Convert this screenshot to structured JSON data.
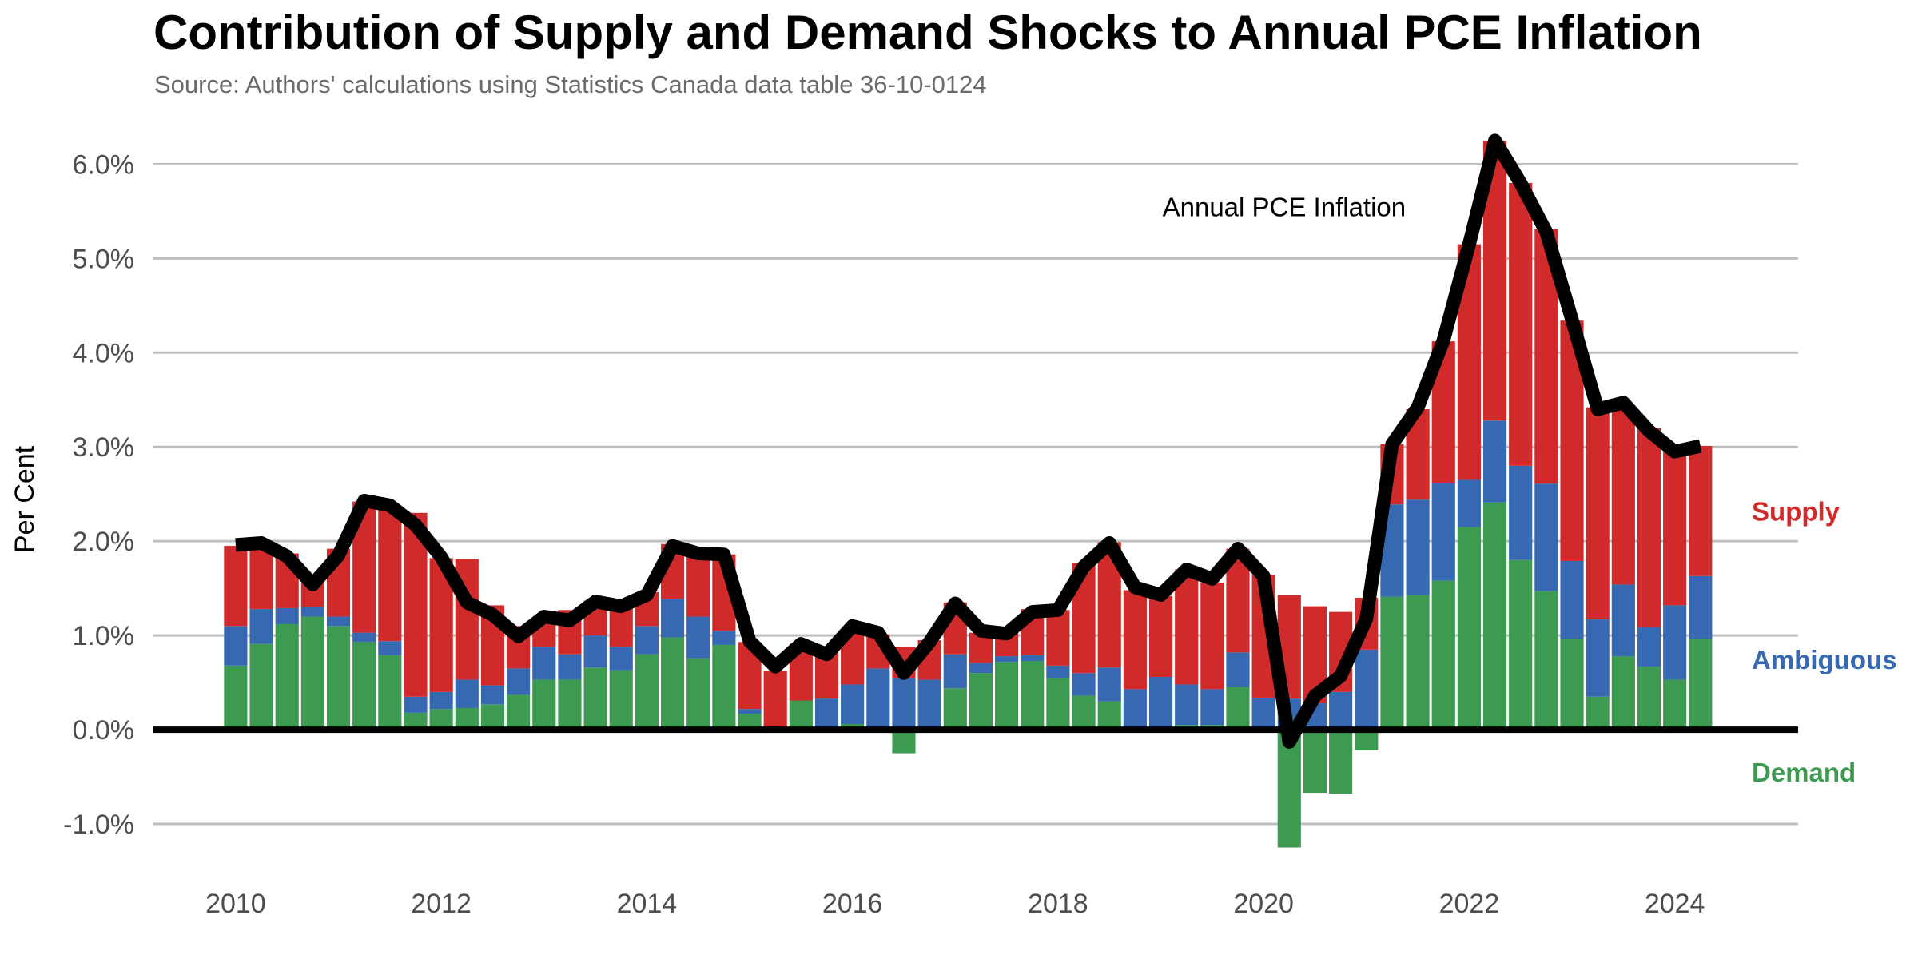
{
  "chart_data": {
    "type": "bar",
    "title": "Contribution of Supply and Demand Shocks to Annual PCE Inflation",
    "subtitle": "Source: Authors' calculations using Statistics Canada data table 36-10-0124",
    "ylabel": "Per Cent",
    "xlabel": "",
    "ylim": [
      -1.5,
      6.3
    ],
    "xlim": [
      2009.2,
      2025.2
    ],
    "yticks": [
      -1,
      0,
      1,
      2,
      3,
      4,
      5,
      6
    ],
    "ytick_labels": [
      "-1.0%",
      "0.0%",
      "1.0%",
      "2.0%",
      "3.0%",
      "4.0%",
      "5.0%",
      "6.0%"
    ],
    "xticks": [
      2010,
      2012,
      2014,
      2016,
      2018,
      2020,
      2022,
      2024
    ],
    "xtick_labels": [
      "2010",
      "2012",
      "2014",
      "2016",
      "2018",
      "2020",
      "2022",
      "2024"
    ],
    "grid": "horizontal",
    "stacked": true,
    "x": [
      2010.0,
      2010.25,
      2010.5,
      2010.75,
      2011.0,
      2011.25,
      2011.5,
      2011.75,
      2012.0,
      2012.25,
      2012.5,
      2012.75,
      2013.0,
      2013.25,
      2013.5,
      2013.75,
      2014.0,
      2014.25,
      2014.5,
      2014.75,
      2015.0,
      2015.25,
      2015.5,
      2015.75,
      2016.0,
      2016.25,
      2016.5,
      2016.75,
      2017.0,
      2017.25,
      2017.5,
      2017.75,
      2018.0,
      2018.25,
      2018.5,
      2018.75,
      2019.0,
      2019.25,
      2019.5,
      2019.75,
      2020.0,
      2020.25,
      2020.5,
      2020.75,
      2021.0,
      2021.25,
      2021.5,
      2021.75,
      2022.0,
      2022.25,
      2022.5,
      2022.75,
      2023.0,
      2023.25,
      2023.5,
      2023.75,
      2024.0,
      2024.25
    ],
    "series": [
      {
        "name": "Demand",
        "color": "#3d9a51",
        "values": [
          0.68,
          0.91,
          1.12,
          1.2,
          1.1,
          0.93,
          0.79,
          0.18,
          0.22,
          0.23,
          0.27,
          0.37,
          0.53,
          0.53,
          0.66,
          0.63,
          0.8,
          0.98,
          0.76,
          0.9,
          0.17,
          0.0,
          0.31,
          0.0,
          0.06,
          0.0,
          -0.25,
          0.0,
          0.44,
          0.6,
          0.72,
          0.73,
          0.55,
          0.36,
          0.3,
          0.0,
          0.0,
          0.05,
          0.05,
          0.45,
          0.0,
          -1.25,
          -0.67,
          -0.68,
          -0.22,
          1.41,
          1.43,
          1.58,
          2.15,
          2.41,
          1.8,
          1.47,
          0.96,
          0.35,
          0.78,
          0.67,
          0.53,
          0.96
        ]
      },
      {
        "name": "Ambiguous",
        "color": "#3669b2",
        "values": [
          0.42,
          0.37,
          0.17,
          0.1,
          0.1,
          0.1,
          0.15,
          0.17,
          0.18,
          0.3,
          0.2,
          0.28,
          0.35,
          0.27,
          0.34,
          0.25,
          0.3,
          0.41,
          0.44,
          0.15,
          0.05,
          0.0,
          0.0,
          0.33,
          0.42,
          0.65,
          0.55,
          0.53,
          0.36,
          0.11,
          0.06,
          0.06,
          0.13,
          0.24,
          0.36,
          0.43,
          0.56,
          0.43,
          0.38,
          0.37,
          0.34,
          0.33,
          0.28,
          0.4,
          0.85,
          0.98,
          1.01,
          1.04,
          0.5,
          0.87,
          1.0,
          1.14,
          0.83,
          0.82,
          0.76,
          0.42,
          0.79,
          0.67
        ]
      },
      {
        "name": "Supply",
        "color": "#d12a2a",
        "values": [
          0.85,
          0.7,
          0.58,
          0.26,
          0.72,
          1.39,
          1.42,
          1.95,
          1.42,
          1.28,
          0.85,
          0.45,
          0.32,
          0.47,
          0.37,
          0.46,
          0.36,
          0.58,
          0.65,
          0.81,
          0.71,
          0.62,
          0.6,
          0.55,
          0.56,
          0.36,
          0.33,
          0.42,
          0.55,
          0.32,
          0.27,
          0.49,
          0.59,
          1.17,
          1.33,
          1.05,
          0.86,
          1.22,
          1.13,
          1.1,
          1.3,
          1.1,
          1.03,
          0.85,
          0.55,
          0.64,
          0.96,
          1.5,
          2.5,
          2.97,
          3.0,
          2.7,
          2.55,
          2.25,
          1.88,
          2.11,
          1.63,
          1.38
        ]
      }
    ],
    "line": {
      "name": "Annual PCE Inflation",
      "color": "#000000",
      "values": [
        1.96,
        1.98,
        1.84,
        1.54,
        1.85,
        2.43,
        2.38,
        2.17,
        1.83,
        1.35,
        1.22,
        0.99,
        1.2,
        1.16,
        1.36,
        1.31,
        1.43,
        1.95,
        1.87,
        1.86,
        0.94,
        0.67,
        0.91,
        0.8,
        1.1,
        1.03,
        0.6,
        0.93,
        1.34,
        1.05,
        1.02,
        1.25,
        1.27,
        1.73,
        1.98,
        1.51,
        1.43,
        1.7,
        1.6,
        1.92,
        1.63,
        -0.13,
        0.36,
        0.57,
        1.18,
        3.03,
        3.42,
        4.13,
        5.15,
        6.25,
        5.8,
        5.28,
        4.35,
        3.4,
        3.47,
        3.17,
        2.95,
        3.01
      ]
    },
    "annotations": [
      {
        "text": "Annual PCE Inflation",
        "x": 2020.2,
        "y": 5.45
      }
    ],
    "legend": {
      "placement": "right",
      "items": [
        "Supply",
        "Ambiguous",
        "Demand"
      ]
    }
  }
}
